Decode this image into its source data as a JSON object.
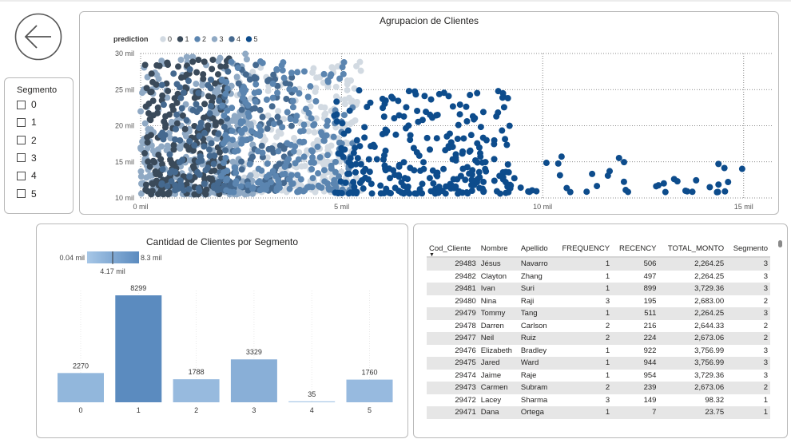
{
  "colors": {
    "s0": "#d2dae2",
    "s1": "#3a4a5a",
    "s2": "#5b85b0",
    "s3": "#8fa9c4",
    "s4": "#45698f",
    "s5": "#0d4c8c",
    "bar_low": "#a7c7e7",
    "bar_high": "#5b8bbf"
  },
  "nav": {
    "back_icon": "back-arrow-icon"
  },
  "slicer": {
    "title": "Segmento",
    "items": [
      {
        "label": "0",
        "checked": false
      },
      {
        "label": "1",
        "checked": false
      },
      {
        "label": "2",
        "checked": false
      },
      {
        "label": "3",
        "checked": false
      },
      {
        "label": "4",
        "checked": false
      },
      {
        "label": "5",
        "checked": false
      }
    ]
  },
  "scatter": {
    "title": "Agrupacion de Clientes",
    "legend_title": "prediction",
    "legend": [
      "0",
      "1",
      "2",
      "3",
      "4",
      "5"
    ],
    "x_ticks": [
      "0 mil",
      "5 mil",
      "10 mil",
      "15 mil"
    ],
    "y_ticks": [
      "10 mil",
      "15 mil",
      "20 mil",
      "25 mil",
      "30 mil"
    ]
  },
  "chart_data": {
    "type": "bar",
    "title": "Cantidad de Clientes por Segmento",
    "categories": [
      "0",
      "1",
      "2",
      "3",
      "4",
      "5"
    ],
    "values": [
      2270,
      8299,
      1788,
      3329,
      35,
      1760
    ],
    "value_labels": [
      "2270",
      "8299",
      "1788",
      "3329",
      "35",
      "1760"
    ],
    "gradient_legend": {
      "min": "0.04 mil",
      "mid": "4.17 mil",
      "max": "8.3 mil"
    }
  },
  "table": {
    "columns": [
      "Cod_Cliente",
      "Nombre",
      "Apellido",
      "FREQUENCY",
      "RECENCY",
      "TOTAL_MONTO",
      "Segmento"
    ],
    "rows": [
      [
        "29483",
        "Jésus",
        "Navarro",
        "1",
        "506",
        "2,264.25",
        "3"
      ],
      [
        "29482",
        "Clayton",
        "Zhang",
        "1",
        "497",
        "2,264.25",
        "3"
      ],
      [
        "29481",
        "Ivan",
        "Suri",
        "1",
        "899",
        "3,729.36",
        "3"
      ],
      [
        "29480",
        "Nina",
        "Raji",
        "3",
        "195",
        "2,683.00",
        "2"
      ],
      [
        "29479",
        "Tommy",
        "Tang",
        "1",
        "511",
        "2,264.25",
        "3"
      ],
      [
        "29478",
        "Darren",
        "Carlson",
        "2",
        "216",
        "2,644.33",
        "2"
      ],
      [
        "29477",
        "Neil",
        "Ruiz",
        "2",
        "224",
        "2,673.06",
        "2"
      ],
      [
        "29476",
        "Elizabeth",
        "Bradley",
        "1",
        "922",
        "3,756.99",
        "3"
      ],
      [
        "29475",
        "Jared",
        "Ward",
        "1",
        "944",
        "3,756.99",
        "3"
      ],
      [
        "29474",
        "Jaime",
        "Raje",
        "1",
        "954",
        "3,729.36",
        "3"
      ],
      [
        "29473",
        "Carmen",
        "Subram",
        "2",
        "239",
        "2,673.06",
        "2"
      ],
      [
        "29472",
        "Lacey",
        "Sharma",
        "3",
        "149",
        "98.32",
        "1"
      ],
      [
        "29471",
        "Dana",
        "Ortega",
        "1",
        "7",
        "23.75",
        "1"
      ]
    ]
  }
}
